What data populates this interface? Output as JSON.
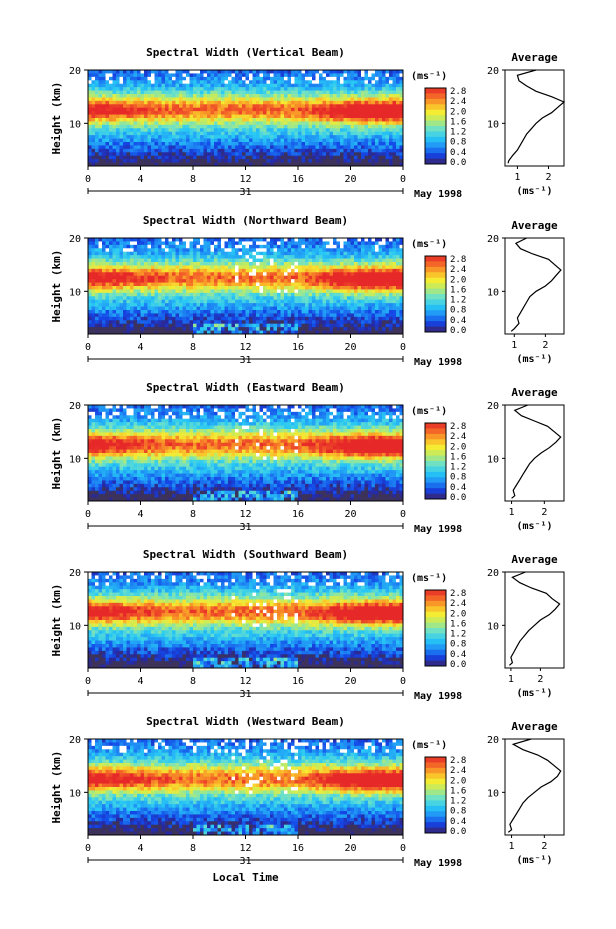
{
  "colorbar_unit": "(ms⁻¹)",
  "colorbar_ticks": [
    "2.8",
    "2.4",
    "2.0",
    "1.6",
    "1.2",
    "0.8",
    "0.4",
    "0.0"
  ],
  "xticks": [
    "0",
    "4",
    "8",
    "12",
    "16",
    "20",
    "0"
  ],
  "date_day": "31",
  "date_label": "May 1998",
  "ylabel": "Height (km)",
  "yticks": [
    "20",
    "10"
  ],
  "avg_title": "Average",
  "avg_xlabel": "(ms⁻¹)",
  "avg_yticks": [
    "20",
    "10"
  ],
  "xlabel_bottom": "Local Time",
  "chart_data": [
    {
      "type": "heatmap",
      "title": "Spectral Width (Vertical Beam)",
      "ylabel": "Height (km)",
      "xlabel": "",
      "unit": "ms-1",
      "x_range_hours": [
        0,
        24
      ],
      "y_range_km": [
        2,
        20
      ],
      "color_range": [
        0.0,
        2.8
      ],
      "avg_profile": {
        "xticks": [
          "1",
          "2"
        ],
        "xlim": [
          0.6,
          2.5
        ],
        "points": [
          [
            1.6,
            20
          ],
          [
            1.0,
            19
          ],
          [
            1.05,
            18
          ],
          [
            1.3,
            17
          ],
          [
            1.6,
            16
          ],
          [
            2.1,
            15
          ],
          [
            2.5,
            14
          ],
          [
            2.3,
            13
          ],
          [
            2.1,
            12
          ],
          [
            1.8,
            11
          ],
          [
            1.6,
            10
          ],
          [
            1.45,
            9
          ],
          [
            1.3,
            8
          ],
          [
            1.2,
            7
          ],
          [
            1.1,
            6
          ],
          [
            1.0,
            5
          ],
          [
            0.85,
            4
          ],
          [
            0.72,
            3
          ],
          [
            0.7,
            2.5
          ]
        ]
      }
    },
    {
      "type": "heatmap",
      "title": "Spectral Width (Northward Beam)",
      "ylabel": "Height (km)",
      "xlabel": "",
      "unit": "ms-1",
      "x_range_hours": [
        0,
        24
      ],
      "y_range_km": [
        2,
        20
      ],
      "color_range": [
        0.0,
        2.8
      ],
      "avg_profile": {
        "xticks": [
          "1",
          "2"
        ],
        "xlim": [
          0.7,
          2.6
        ],
        "points": [
          [
            1.4,
            20
          ],
          [
            1.05,
            19
          ],
          [
            1.2,
            18
          ],
          [
            1.6,
            17
          ],
          [
            2.1,
            16
          ],
          [
            2.3,
            15
          ],
          [
            2.5,
            14
          ],
          [
            2.35,
            13
          ],
          [
            2.2,
            12
          ],
          [
            2.0,
            11
          ],
          [
            1.7,
            10
          ],
          [
            1.5,
            9
          ],
          [
            1.4,
            8
          ],
          [
            1.3,
            7
          ],
          [
            1.2,
            6
          ],
          [
            1.1,
            5
          ],
          [
            1.15,
            4
          ],
          [
            1.0,
            3
          ],
          [
            0.9,
            2.5
          ]
        ]
      }
    },
    {
      "type": "heatmap",
      "title": "Spectral Width (Eastward Beam)",
      "ylabel": "Height (km)",
      "xlabel": "",
      "unit": "ms-1",
      "x_range_hours": [
        0,
        24
      ],
      "y_range_km": [
        2,
        20
      ],
      "color_range": [
        0.0,
        2.8
      ],
      "avg_profile": {
        "xticks": [
          "1",
          "2"
        ],
        "xlim": [
          0.8,
          2.6
        ],
        "points": [
          [
            1.5,
            20
          ],
          [
            1.1,
            19
          ],
          [
            1.3,
            18
          ],
          [
            1.7,
            17
          ],
          [
            2.1,
            16
          ],
          [
            2.3,
            15
          ],
          [
            2.5,
            14
          ],
          [
            2.35,
            13
          ],
          [
            2.15,
            12
          ],
          [
            1.9,
            11
          ],
          [
            1.7,
            10
          ],
          [
            1.55,
            9
          ],
          [
            1.45,
            8
          ],
          [
            1.35,
            7
          ],
          [
            1.25,
            6
          ],
          [
            1.15,
            5
          ],
          [
            1.05,
            4
          ],
          [
            1.1,
            3
          ],
          [
            1.0,
            2.5
          ]
        ]
      }
    },
    {
      "type": "heatmap",
      "title": "Spectral Width (Southward Beam)",
      "ylabel": "Height (km)",
      "xlabel": "",
      "unit": "ms-1",
      "x_range_hours": [
        0,
        24
      ],
      "y_range_km": [
        2,
        20
      ],
      "color_range": [
        0.0,
        2.8
      ],
      "avg_profile": {
        "xticks": [
          "1",
          "2"
        ],
        "xlim": [
          0.8,
          2.8
        ],
        "points": [
          [
            1.5,
            20
          ],
          [
            1.05,
            19
          ],
          [
            1.3,
            18
          ],
          [
            1.7,
            17
          ],
          [
            2.2,
            16
          ],
          [
            2.4,
            15
          ],
          [
            2.65,
            14
          ],
          [
            2.5,
            13
          ],
          [
            2.3,
            12
          ],
          [
            2.0,
            11
          ],
          [
            1.8,
            10
          ],
          [
            1.6,
            9
          ],
          [
            1.45,
            8
          ],
          [
            1.3,
            7
          ],
          [
            1.2,
            6
          ],
          [
            1.1,
            5
          ],
          [
            1.0,
            4
          ],
          [
            1.05,
            3
          ],
          [
            0.95,
            2.5
          ]
        ]
      }
    },
    {
      "type": "heatmap",
      "title": "Spectral Width (Westward Beam)",
      "ylabel": "Height (km)",
      "xlabel": "Local Time",
      "unit": "ms-1",
      "x_range_hours": [
        0,
        24
      ],
      "y_range_km": [
        2,
        20
      ],
      "color_range": [
        0.0,
        2.8
      ],
      "avg_profile": {
        "xticks": [
          "1",
          "2"
        ],
        "xlim": [
          0.8,
          2.6
        ],
        "points": [
          [
            1.6,
            20
          ],
          [
            1.05,
            19
          ],
          [
            1.35,
            18
          ],
          [
            1.8,
            17
          ],
          [
            2.1,
            16
          ],
          [
            2.3,
            15
          ],
          [
            2.5,
            14
          ],
          [
            2.4,
            13
          ],
          [
            2.2,
            12
          ],
          [
            1.9,
            11
          ],
          [
            1.7,
            10
          ],
          [
            1.5,
            9
          ],
          [
            1.35,
            8
          ],
          [
            1.25,
            7
          ],
          [
            1.15,
            6
          ],
          [
            1.05,
            5
          ],
          [
            0.95,
            4
          ],
          [
            1.0,
            3
          ],
          [
            0.9,
            2.5
          ]
        ]
      }
    }
  ]
}
